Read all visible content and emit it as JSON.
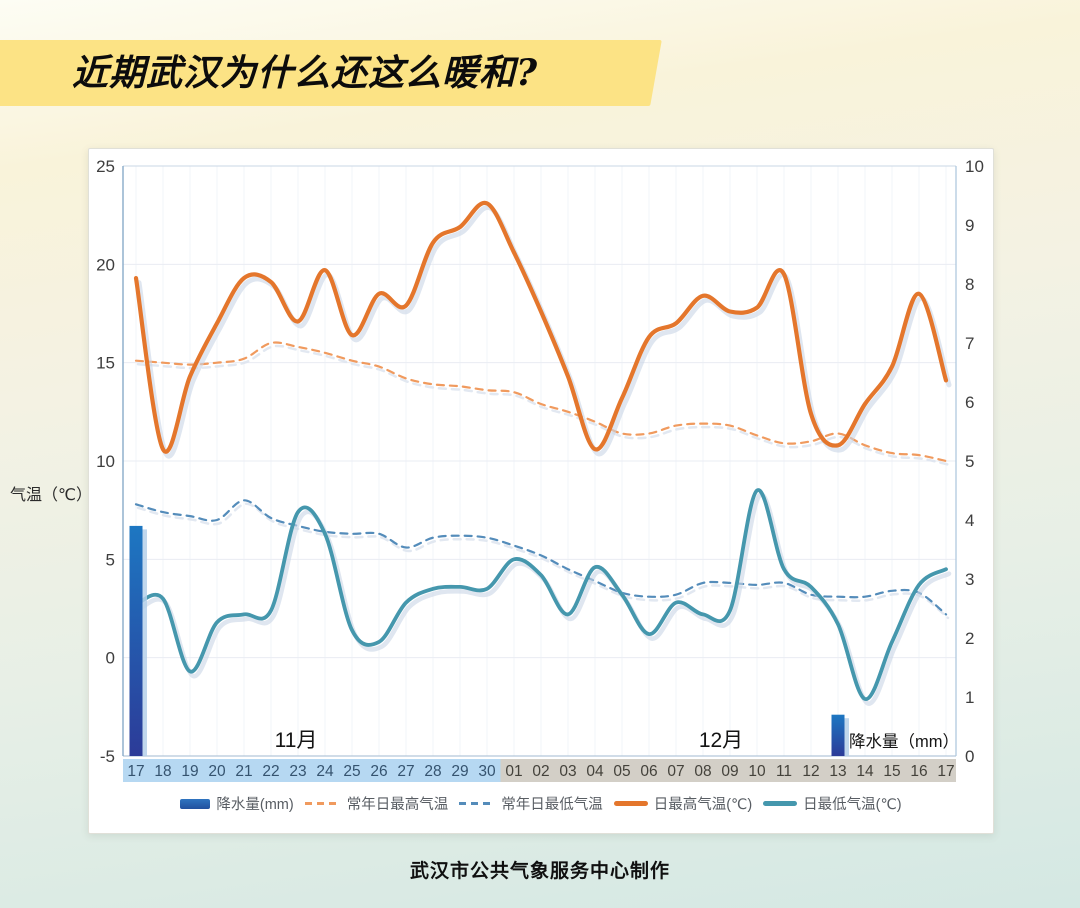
{
  "page": {
    "title": "近期武汉为什么还这么暖和?",
    "footer": "武汉市公共气象服务中心制作",
    "banner_color": "#fce385"
  },
  "chart_data": {
    "type": "mixed-line-bar",
    "x_days": [
      "17",
      "18",
      "19",
      "20",
      "21",
      "22",
      "23",
      "24",
      "25",
      "26",
      "27",
      "28",
      "29",
      "30",
      "01",
      "02",
      "03",
      "04",
      "05",
      "06",
      "07",
      "08",
      "09",
      "10",
      "11",
      "12",
      "13",
      "14",
      "15",
      "16",
      "17"
    ],
    "month_bands": [
      {
        "label": "11月",
        "days": 14,
        "band_color": "#b6d8f2",
        "text_color": "#35536f"
      },
      {
        "label": "12月",
        "days": 17,
        "band_color": "#d3cfc7",
        "text_color": "#44423b"
      }
    ],
    "left_axis": {
      "title": "气温（℃）",
      "min": -5,
      "max": 25,
      "ticks": [
        "25",
        "20",
        "15",
        "10",
        "5",
        "0",
        "-5"
      ]
    },
    "right_axis": {
      "title": "降水量（mm）",
      "min": 0,
      "max": 10,
      "ticks": [
        "10",
        "9",
        "8",
        "7",
        "6",
        "5",
        "4",
        "3",
        "2",
        "1",
        "0"
      ]
    },
    "grid": {
      "horizontal": true,
      "vertical_faint": true
    },
    "series": [
      {
        "name": "降水量(mm)",
        "type": "bar",
        "axis": "right",
        "color_top": "#1d77c2",
        "color_bottom": "#2c3b98",
        "shadow_color": "#b5d0ea",
        "values": [
          3.9,
          0,
          0,
          0,
          0,
          0,
          0,
          0,
          0,
          0,
          0,
          0,
          0,
          0,
          0,
          0,
          0,
          0,
          0,
          0,
          0,
          0,
          0,
          0,
          0,
          0,
          0.7,
          0,
          0,
          0,
          0
        ]
      },
      {
        "name": "常年日最高气温",
        "type": "line",
        "dash": true,
        "color": "#f09a5e",
        "width": 2.2,
        "values": [
          15.1,
          15.0,
          14.9,
          15.0,
          15.2,
          16.0,
          15.8,
          15.5,
          15.1,
          14.8,
          14.2,
          13.9,
          13.8,
          13.6,
          13.5,
          12.9,
          12.5,
          12.0,
          11.4,
          11.4,
          11.8,
          11.9,
          11.8,
          11.3,
          10.9,
          11.0,
          11.4,
          10.8,
          10.4,
          10.3,
          10.0
        ]
      },
      {
        "name": "常年日最低气温",
        "type": "line",
        "dash": true,
        "color": "#548cba",
        "width": 2.2,
        "values": [
          7.8,
          7.4,
          7.2,
          7.0,
          8.0,
          7.1,
          6.7,
          6.4,
          6.3,
          6.3,
          5.6,
          6.1,
          6.2,
          6.1,
          5.7,
          5.2,
          4.5,
          3.9,
          3.3,
          3.1,
          3.2,
          3.8,
          3.8,
          3.7,
          3.8,
          3.2,
          3.1,
          3.1,
          3.4,
          3.3,
          2.2
        ]
      },
      {
        "name": "日最高气温(℃)",
        "type": "line",
        "dash": false,
        "color": "#e4762c",
        "width": 4.2,
        "values": [
          19.3,
          10.6,
          14.3,
          17.0,
          19.3,
          19.1,
          17.1,
          19.7,
          16.4,
          18.5,
          17.9,
          21.1,
          21.9,
          23.1,
          20.6,
          17.6,
          14.3,
          10.6,
          13.2,
          16.3,
          17.0,
          18.4,
          17.6,
          17.8,
          19.5,
          12.4,
          10.8,
          12.9,
          14.8,
          18.5,
          14.1
        ]
      },
      {
        "name": "日最低气温(℃)",
        "type": "line",
        "dash": false,
        "color": "#4597ad",
        "width": 3.8,
        "values": [
          2.7,
          3.0,
          -0.7,
          1.8,
          2.2,
          2.4,
          7.4,
          6.3,
          1.4,
          0.8,
          2.8,
          3.5,
          3.6,
          3.5,
          5.0,
          4.2,
          2.2,
          4.6,
          3.2,
          1.2,
          2.8,
          2.2,
          2.4,
          8.5,
          4.5,
          3.6,
          1.7,
          -2.1,
          0.8,
          3.7,
          4.5
        ]
      }
    ],
    "legend": [
      {
        "label": "降水量(mm)",
        "swatch": "bar"
      },
      {
        "label": "常年日最高气温",
        "swatch": "dash-orange"
      },
      {
        "label": "常年日最低气温",
        "swatch": "dash-blue"
      },
      {
        "label": "日最高气温(℃)",
        "swatch": "line-orange"
      },
      {
        "label": "日最低气温(℃)",
        "swatch": "line-teal"
      }
    ]
  }
}
